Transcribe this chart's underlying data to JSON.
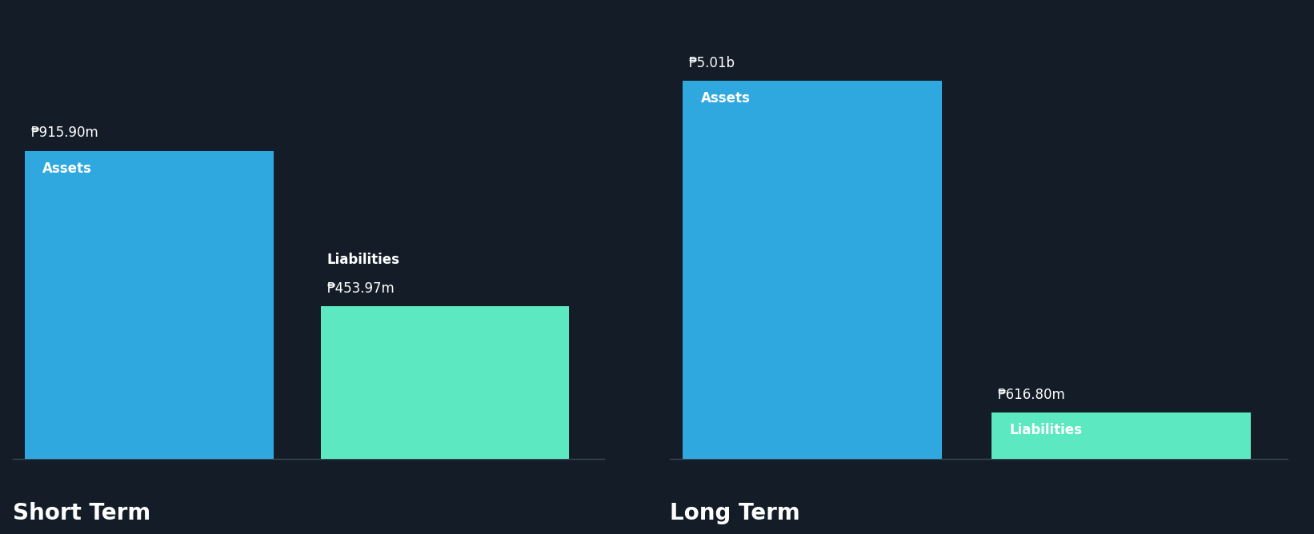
{
  "background_color": "#131c27",
  "short_term": {
    "assets_value": 915.9,
    "liabilities_value": 453.97,
    "assets_label": "₱915.90m",
    "liabilities_label": "₱453.97m",
    "assets_inner_label": "Assets",
    "liabilities_inner_label": "Liabilities",
    "section_title": "Short Term"
  },
  "long_term": {
    "assets_value": 5010,
    "liabilities_value": 616.8,
    "assets_label": "₱5.01b",
    "liabilities_label": "₱616.80m",
    "assets_inner_label": "Assets",
    "liabilities_inner_label": "Liabilities",
    "section_title": "Long Term"
  },
  "assets_color": "#2fa8e0",
  "liabilities_color": "#5ce8c0",
  "text_color": "#ffffff",
  "label_fontsize": 12,
  "inner_label_fontsize": 12,
  "section_title_fontsize": 20,
  "bottom_line_color": "#3a4a5a"
}
